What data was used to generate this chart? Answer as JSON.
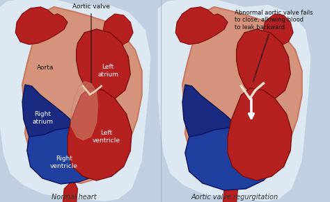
{
  "background_color": "#ccd9e8",
  "fig_width": 4.74,
  "fig_height": 2.91,
  "title_left": "Normal heart",
  "title_right": "Aortic valve regurgitation",
  "label_aortic_valve": "Aortic valve",
  "label_aorta": "Aorta",
  "label_left_atrium": "Left\natrium",
  "label_left_ventricle": "Left\nventricle",
  "label_right_atrium": "Right\natrium",
  "label_right_ventricle": "Right\nventricle",
  "label_abnormal": "Abnormal aortic valve fails\nto close, allowing blood\nto leak backward",
  "color_red_dark": "#b52020",
  "color_red_mid": "#cc3030",
  "color_blue_dark": "#1a2a80",
  "color_blue_mid": "#2040a0",
  "color_blue_light": "#3060c0",
  "color_pink": "#d4937a",
  "color_skin": "#c87860",
  "color_bg_blue": "#c0d0e0",
  "color_white": "#ffffff",
  "color_text_dark": "#111111",
  "color_text_white": "#ffffff",
  "color_body": "#dde8f0"
}
